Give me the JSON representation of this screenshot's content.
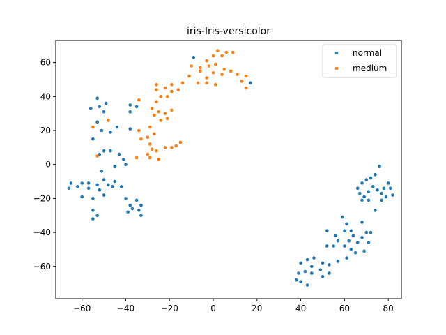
{
  "chart_data": {
    "type": "scatter",
    "title": "iris-Iris-versicolor",
    "xlabel": "",
    "ylabel": "",
    "xlim": [
      -72,
      86
    ],
    "ylim": [
      -79,
      73
    ],
    "xticks": [
      -60,
      -40,
      -20,
      0,
      20,
      40,
      60,
      80
    ],
    "yticks": [
      -60,
      -40,
      -20,
      0,
      20,
      40,
      60
    ],
    "grid": false,
    "legend_position": "top-right",
    "series": [
      {
        "name": "normal",
        "color": "#1f77b4",
        "points": [
          [
            -53,
            39
          ],
          [
            -56,
            33
          ],
          [
            -52,
            34
          ],
          [
            -49,
            36
          ],
          [
            -50,
            31
          ],
          [
            -53,
            25
          ],
          [
            -48,
            26
          ],
          [
            -55,
            15
          ],
          [
            -51,
            20
          ],
          [
            -47,
            19
          ],
          [
            -44,
            22
          ],
          [
            -38,
            35
          ],
          [
            -38,
            31
          ],
          [
            -35,
            34
          ],
          [
            -38,
            21
          ],
          [
            -52,
            6
          ],
          [
            -50,
            8
          ],
          [
            -47,
            8
          ],
          [
            -45,
            -1
          ],
          [
            -43,
            6
          ],
          [
            -41,
            3
          ],
          [
            -40,
            0
          ],
          [
            -66,
            -14
          ],
          [
            -65,
            -11
          ],
          [
            -62,
            -13
          ],
          [
            -60,
            -11
          ],
          [
            -60,
            -19
          ],
          [
            -57,
            -14
          ],
          [
            -57,
            -11
          ],
          [
            -55,
            -20
          ],
          [
            -53,
            -12
          ],
          [
            -51,
            -4
          ],
          [
            -52,
            -15
          ],
          [
            -50,
            -9
          ],
          [
            -50,
            -18
          ],
          [
            -48,
            -12
          ],
          [
            -46,
            -13
          ],
          [
            -45,
            -10
          ],
          [
            -42,
            -13
          ],
          [
            -40,
            -20
          ],
          [
            -38,
            -24
          ],
          [
            -39,
            -28
          ],
          [
            -37,
            -26
          ],
          [
            -35,
            -21
          ],
          [
            -33,
            -24
          ],
          [
            -34,
            -27
          ],
          [
            -33,
            -30
          ],
          [
            -55,
            -27
          ],
          [
            -55,
            -32
          ],
          [
            -53,
            -30
          ],
          [
            -9,
            63
          ],
          [
            17,
            48
          ],
          [
            76,
            -1
          ],
          [
            74,
            -6
          ],
          [
            72,
            -8
          ],
          [
            70,
            -9
          ],
          [
            68,
            -11
          ],
          [
            66,
            -14
          ],
          [
            67,
            -17
          ],
          [
            69,
            -19
          ],
          [
            71,
            -16
          ],
          [
            73,
            -13
          ],
          [
            75,
            -15
          ],
          [
            77,
            -17
          ],
          [
            78,
            -14
          ],
          [
            80,
            -11
          ],
          [
            81,
            -14
          ],
          [
            82,
            -18
          ],
          [
            79,
            -19
          ],
          [
            77,
            -21
          ],
          [
            74,
            -27
          ],
          [
            71,
            -21
          ],
          [
            68,
            -21
          ],
          [
            68,
            -34
          ],
          [
            70,
            -40
          ],
          [
            68,
            -43
          ],
          [
            66,
            -46
          ],
          [
            63,
            -39
          ],
          [
            64,
            -42
          ],
          [
            62,
            -45
          ],
          [
            60,
            -39
          ],
          [
            61,
            -35
          ],
          [
            59,
            -31
          ],
          [
            56,
            -42
          ],
          [
            57,
            -45
          ],
          [
            55,
            -48
          ],
          [
            52,
            -39
          ],
          [
            52,
            -48
          ],
          [
            60,
            -48
          ],
          [
            63,
            -50
          ],
          [
            65,
            -52
          ],
          [
            69,
            -51
          ],
          [
            71,
            -46
          ],
          [
            72,
            -40
          ],
          [
            61,
            -55
          ],
          [
            57,
            -57
          ],
          [
            53,
            -59
          ],
          [
            50,
            -58
          ],
          [
            49,
            -62
          ],
          [
            46,
            -55
          ],
          [
            45,
            -60
          ],
          [
            43,
            -56
          ],
          [
            42,
            -63
          ],
          [
            40,
            -58
          ],
          [
            39,
            -64
          ],
          [
            38,
            -68
          ],
          [
            40,
            -69
          ],
          [
            43,
            -71
          ],
          [
            45,
            -64
          ],
          [
            53,
            -64
          ],
          [
            50,
            -66
          ]
        ]
      },
      {
        "name": "medium",
        "color": "#ff7f0e",
        "points": [
          [
            2,
            67
          ],
          [
            6,
            66
          ],
          [
            9,
            66
          ],
          [
            4,
            64
          ],
          [
            0,
            64
          ],
          [
            -3,
            61
          ],
          [
            -6,
            57
          ],
          [
            -10,
            58
          ],
          [
            -6,
            55
          ],
          [
            -2,
            58
          ],
          [
            1,
            59
          ],
          [
            0,
            54
          ],
          [
            5,
            56
          ],
          [
            8,
            55
          ],
          [
            4,
            53
          ],
          [
            -3,
            51
          ],
          [
            -11,
            52
          ],
          [
            -14,
            48
          ],
          [
            -7,
            48
          ],
          [
            -3,
            48
          ],
          [
            1,
            47
          ],
          [
            11,
            53
          ],
          [
            15,
            52
          ],
          [
            13,
            49
          ],
          [
            15,
            45
          ],
          [
            -19,
            47
          ],
          [
            -22,
            45
          ],
          [
            -26,
            47
          ],
          [
            -26,
            44
          ],
          [
            -24,
            40
          ],
          [
            -21,
            40
          ],
          [
            -16,
            44
          ],
          [
            -19,
            43
          ],
          [
            -34,
            38
          ],
          [
            -26,
            37
          ],
          [
            -28,
            33
          ],
          [
            -25,
            31
          ],
          [
            -22,
            30
          ],
          [
            -19,
            32
          ],
          [
            -21,
            27
          ],
          [
            -24,
            26
          ],
          [
            -27,
            29
          ],
          [
            -34,
            20
          ],
          [
            -29,
            22
          ],
          [
            -27,
            18
          ],
          [
            -30,
            16
          ],
          [
            -33,
            15
          ],
          [
            -29,
            12
          ],
          [
            -28,
            9
          ],
          [
            -26,
            8
          ],
          [
            -22,
            10
          ],
          [
            -19,
            10
          ],
          [
            -17,
            11
          ],
          [
            -15,
            13
          ],
          [
            -30,
            6
          ],
          [
            -29,
            4
          ],
          [
            -25,
            3
          ],
          [
            -35,
            4
          ],
          [
            -55,
            22
          ],
          [
            -48,
            26
          ],
          [
            -53,
            5
          ]
        ]
      }
    ]
  }
}
